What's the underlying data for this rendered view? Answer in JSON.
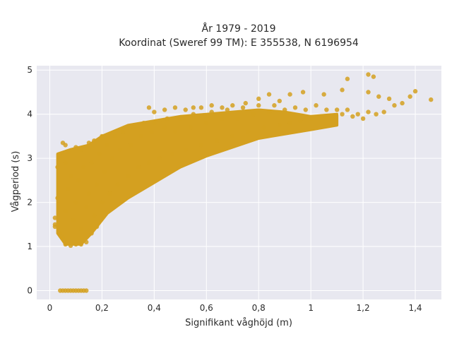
{
  "chart_data": {
    "type": "scatter",
    "title": "År 1979 - 2019",
    "subtitle": "Koordinat (Sweref 99 TM): E 355538, N 6196954",
    "xlabel": "Signifikant våghöjd (m)",
    "ylabel": "Vågperiod (s)",
    "xlim": [
      -0.05,
      1.5
    ],
    "ylim": [
      -0.2,
      5.1
    ],
    "x_ticks": [
      0,
      0.2,
      0.4,
      0.6,
      0.8,
      1,
      1.2,
      1.4
    ],
    "x_tick_labels": [
      "0",
      "0,2",
      "0,4",
      "0,6",
      "0,8",
      "1",
      "1,2",
      "1,4"
    ],
    "y_ticks": [
      0,
      1,
      2,
      3,
      4,
      5
    ],
    "y_tick_labels": [
      "0",
      "1",
      "2",
      "3",
      "4",
      "5"
    ],
    "grid": true,
    "colors": {
      "marker": "#d4a020",
      "plot_bg": "#e8e8f0",
      "grid": "#ffffff"
    },
    "points": [
      [
        0.04,
        0
      ],
      [
        0.05,
        0
      ],
      [
        0.06,
        0
      ],
      [
        0.07,
        0
      ],
      [
        0.08,
        0
      ],
      [
        0.09,
        0
      ],
      [
        0.1,
        0
      ],
      [
        0.11,
        0
      ],
      [
        0.12,
        0
      ],
      [
        0.13,
        0
      ],
      [
        0.14,
        0
      ],
      [
        0.02,
        1.5
      ],
      [
        0.02,
        1.65
      ],
      [
        0.02,
        1.45
      ],
      [
        0.03,
        2.1
      ],
      [
        0.03,
        2.8
      ],
      [
        0.04,
        3.05
      ],
      [
        0.05,
        3.35
      ],
      [
        0.06,
        3.3
      ],
      [
        0.07,
        3.15
      ],
      [
        0.06,
        2.9
      ],
      [
        0.04,
        1.3
      ],
      [
        0.05,
        1.2
      ],
      [
        0.06,
        1.05
      ],
      [
        0.08,
        1.02
      ],
      [
        0.1,
        1.05
      ],
      [
        0.12,
        1.05
      ],
      [
        0.14,
        1.1
      ],
      [
        0.16,
        1.3
      ],
      [
        0.18,
        1.45
      ],
      [
        0.06,
        1.8
      ],
      [
        0.07,
        2.3
      ],
      [
        0.08,
        2.6
      ],
      [
        0.09,
        1.6
      ],
      [
        0.1,
        2.0
      ],
      [
        0.11,
        2.5
      ],
      [
        0.12,
        1.4
      ],
      [
        0.13,
        2.8
      ],
      [
        0.14,
        1.9
      ],
      [
        0.15,
        2.2
      ],
      [
        0.16,
        2.9
      ],
      [
        0.17,
        1.7
      ],
      [
        0.18,
        2.4
      ],
      [
        0.19,
        3.1
      ],
      [
        0.2,
        2.0
      ],
      [
        0.21,
        2.7
      ],
      [
        0.22,
        3.3
      ],
      [
        0.23,
        2.2
      ],
      [
        0.24,
        3.0
      ],
      [
        0.25,
        3.5
      ],
      [
        0.26,
        2.4
      ],
      [
        0.27,
        3.2
      ],
      [
        0.28,
        3.6
      ],
      [
        0.3,
        2.6
      ],
      [
        0.31,
        3.3
      ],
      [
        0.32,
        3.7
      ],
      [
        0.34,
        2.8
      ],
      [
        0.35,
        3.5
      ],
      [
        0.36,
        3.8
      ],
      [
        0.38,
        2.9
      ],
      [
        0.39,
        3.6
      ],
      [
        0.4,
        3.8
      ],
      [
        0.42,
        3.0
      ],
      [
        0.44,
        3.7
      ],
      [
        0.45,
        3.9
      ],
      [
        0.47,
        3.1
      ],
      [
        0.48,
        3.6
      ],
      [
        0.5,
        3.9
      ],
      [
        0.52,
        3.2
      ],
      [
        0.54,
        3.7
      ],
      [
        0.55,
        4.0
      ],
      [
        0.58,
        3.3
      ],
      [
        0.6,
        3.8
      ],
      [
        0.62,
        4.05
      ],
      [
        0.64,
        3.4
      ],
      [
        0.66,
        3.9
      ],
      [
        0.68,
        4.1
      ],
      [
        0.7,
        3.5
      ],
      [
        0.72,
        3.9
      ],
      [
        0.74,
        4.15
      ],
      [
        0.76,
        3.6
      ],
      [
        0.78,
        4.0
      ],
      [
        0.8,
        4.2
      ],
      [
        0.82,
        3.7
      ],
      [
        0.84,
        4.05
      ],
      [
        0.86,
        4.2
      ],
      [
        0.88,
        3.75
      ],
      [
        0.9,
        4.1
      ],
      [
        0.92,
        3.8
      ],
      [
        0.94,
        4.15
      ],
      [
        0.96,
        3.85
      ],
      [
        0.98,
        4.1
      ],
      [
        1.0,
        3.9
      ],
      [
        1.02,
        4.2
      ],
      [
        1.04,
        3.95
      ],
      [
        1.06,
        4.1
      ],
      [
        1.08,
        3.9
      ],
      [
        1.1,
        4.1
      ],
      [
        1.12,
        4.0
      ],
      [
        1.14,
        4.1
      ],
      [
        1.16,
        3.95
      ],
      [
        1.18,
        4.0
      ],
      [
        1.2,
        3.9
      ],
      [
        1.22,
        4.05
      ],
      [
        1.25,
        4.0
      ],
      [
        1.28,
        4.05
      ],
      [
        1.22,
        4.5
      ],
      [
        1.14,
        4.8
      ],
      [
        1.22,
        4.9
      ],
      [
        1.24,
        4.85
      ],
      [
        1.26,
        4.4
      ],
      [
        1.3,
        4.35
      ],
      [
        1.32,
        4.2
      ],
      [
        1.35,
        4.25
      ],
      [
        1.38,
        4.4
      ],
      [
        1.4,
        4.52
      ],
      [
        1.46,
        4.33
      ],
      [
        1.12,
        4.55
      ],
      [
        1.05,
        4.45
      ],
      [
        0.97,
        4.5
      ],
      [
        0.92,
        4.45
      ],
      [
        0.88,
        4.3
      ],
      [
        0.84,
        4.45
      ],
      [
        0.8,
        4.35
      ],
      [
        0.75,
        4.25
      ],
      [
        0.7,
        4.2
      ],
      [
        0.66,
        4.15
      ],
      [
        0.62,
        4.2
      ],
      [
        0.58,
        4.15
      ],
      [
        0.55,
        4.15
      ],
      [
        0.52,
        4.1
      ],
      [
        0.48,
        4.15
      ],
      [
        0.4,
        4.05
      ],
      [
        0.38,
        4.15
      ],
      [
        0.44,
        4.1
      ],
      [
        0.12,
        3.2
      ],
      [
        0.1,
        3.25
      ],
      [
        0.15,
        3.35
      ],
      [
        0.17,
        3.4
      ],
      [
        0.2,
        3.5
      ]
    ]
  }
}
